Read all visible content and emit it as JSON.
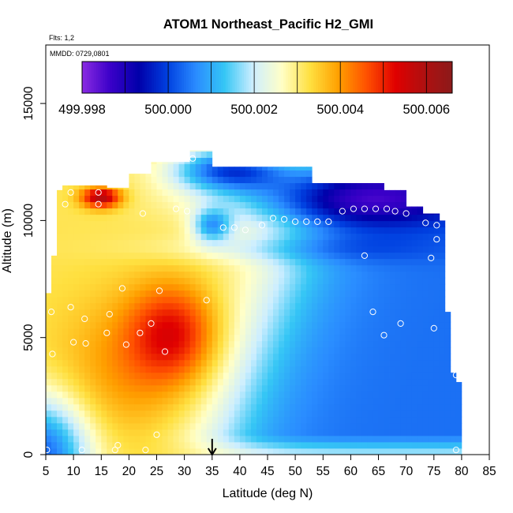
{
  "chart_data": {
    "type": "heatmap",
    "title": "ATOM1 Northeast_Pacific H2_GMI",
    "flights_label": "Flts: 1,2",
    "dates_label": "MMDD: 0729,0801",
    "xlabel": "Latitude (deg N)",
    "ylabel": "Altitude (m)",
    "xlim": [
      5,
      85
    ],
    "ylim": [
      0,
      17500
    ],
    "x_ticks": [
      "5",
      "10",
      "15",
      "20",
      "25",
      "30",
      "35",
      "40",
      "45",
      "50",
      "55",
      "60",
      "65",
      "70",
      "75",
      "80",
      "85"
    ],
    "y_ticks": [
      "0",
      "5000",
      "10000",
      "15000"
    ],
    "colorbar": {
      "min": 499.998,
      "max": 500.0066,
      "tick_labels": [
        "499.998",
        "500.000",
        "500.002",
        "500.004",
        "500.006"
      ],
      "colors": [
        "#8a2be2",
        "#3a00c8",
        "#0000aa",
        "#0040e0",
        "#2a8cff",
        "#35c6f5",
        "#cdeeff",
        "#ffffc8",
        "#ffe040",
        "#ffa000",
        "#ff5000",
        "#e00000",
        "#b01010",
        "#8b1a1a"
      ]
    },
    "marker": {
      "x": 35,
      "label": "arrow at 35 deg N"
    },
    "grid_dlat": 1.0,
    "grid_dalt": 270,
    "envelope": [
      [
        5,
        0,
        6900
      ],
      [
        6,
        0,
        8500
      ],
      [
        7,
        0,
        11300
      ],
      [
        8,
        0,
        11500
      ],
      [
        14,
        0,
        11500
      ],
      [
        16,
        0,
        11400
      ],
      [
        18,
        0,
        11400
      ],
      [
        20,
        0,
        12000
      ],
      [
        22,
        0,
        12000
      ],
      [
        24,
        0,
        12500
      ],
      [
        29,
        0,
        12500
      ],
      [
        31,
        0,
        13000
      ],
      [
        33,
        0,
        13000
      ],
      [
        35,
        0,
        12300
      ],
      [
        50,
        0,
        12300
      ],
      [
        53,
        0,
        11600
      ],
      [
        66,
        0,
        11300
      ],
      [
        70,
        0,
        10600
      ],
      [
        73,
        0,
        10300
      ],
      [
        76,
        0,
        10000
      ],
      [
        77,
        0,
        6100
      ],
      [
        78,
        0,
        3500
      ],
      [
        79,
        0,
        3100
      ]
    ],
    "observations": [
      {
        "lat": 5.2,
        "alt": 200
      },
      {
        "lat": 11.5,
        "alt": 200
      },
      {
        "lat": 17.5,
        "alt": 200
      },
      {
        "lat": 18.0,
        "alt": 400
      },
      {
        "lat": 23.0,
        "alt": 200
      },
      {
        "lat": 79.0,
        "alt": 200
      },
      {
        "lat": 25.0,
        "alt": 850
      },
      {
        "lat": 6.0,
        "alt": 6100
      },
      {
        "lat": 9.5,
        "alt": 6300
      },
      {
        "lat": 12.0,
        "alt": 5800
      },
      {
        "lat": 16.5,
        "alt": 6000
      },
      {
        "lat": 18.8,
        "alt": 7100
      },
      {
        "lat": 25.5,
        "alt": 7000
      },
      {
        "lat": 34.0,
        "alt": 6600
      },
      {
        "lat": 24.0,
        "alt": 5600
      },
      {
        "lat": 22.0,
        "alt": 5200
      },
      {
        "lat": 16.0,
        "alt": 5200
      },
      {
        "lat": 10.0,
        "alt": 4800
      },
      {
        "lat": 12.2,
        "alt": 4750
      },
      {
        "lat": 19.5,
        "alt": 4700
      },
      {
        "lat": 6.2,
        "alt": 4300
      },
      {
        "lat": 26.5,
        "alt": 4400
      },
      {
        "lat": 64.0,
        "alt": 6100
      },
      {
        "lat": 66.0,
        "alt": 5100
      },
      {
        "lat": 69.0,
        "alt": 5600
      },
      {
        "lat": 75.0,
        "alt": 5400
      },
      {
        "lat": 79.0,
        "alt": 3400
      },
      {
        "lat": 74.5,
        "alt": 8400
      },
      {
        "lat": 62.5,
        "alt": 8500
      },
      {
        "lat": 8.5,
        "alt": 10700
      },
      {
        "lat": 9.5,
        "alt": 11200
      },
      {
        "lat": 14.5,
        "alt": 11200
      },
      {
        "lat": 14.5,
        "alt": 10700
      },
      {
        "lat": 22.5,
        "alt": 10300
      },
      {
        "lat": 28.5,
        "alt": 10500
      },
      {
        "lat": 30.5,
        "alt": 10400
      },
      {
        "lat": 37.0,
        "alt": 9700
      },
      {
        "lat": 39.0,
        "alt": 9700
      },
      {
        "lat": 41.0,
        "alt": 9600
      },
      {
        "lat": 44.0,
        "alt": 9800
      },
      {
        "lat": 46.0,
        "alt": 10100
      },
      {
        "lat": 48.0,
        "alt": 10050
      },
      {
        "lat": 50.0,
        "alt": 9950
      },
      {
        "lat": 52.0,
        "alt": 9950
      },
      {
        "lat": 54.0,
        "alt": 9950
      },
      {
        "lat": 56.0,
        "alt": 9950
      },
      {
        "lat": 58.5,
        "alt": 10400
      },
      {
        "lat": 60.5,
        "alt": 10500
      },
      {
        "lat": 62.5,
        "alt": 10500
      },
      {
        "lat": 64.5,
        "alt": 10500
      },
      {
        "lat": 66.5,
        "alt": 10500
      },
      {
        "lat": 68.0,
        "alt": 10400
      },
      {
        "lat": 70.0,
        "alt": 10300
      },
      {
        "lat": 73.5,
        "alt": 9900
      },
      {
        "lat": 75.5,
        "alt": 9800
      },
      {
        "lat": 31.5,
        "alt": 12650
      },
      {
        "lat": 75.5,
        "alt": 9200
      }
    ]
  }
}
